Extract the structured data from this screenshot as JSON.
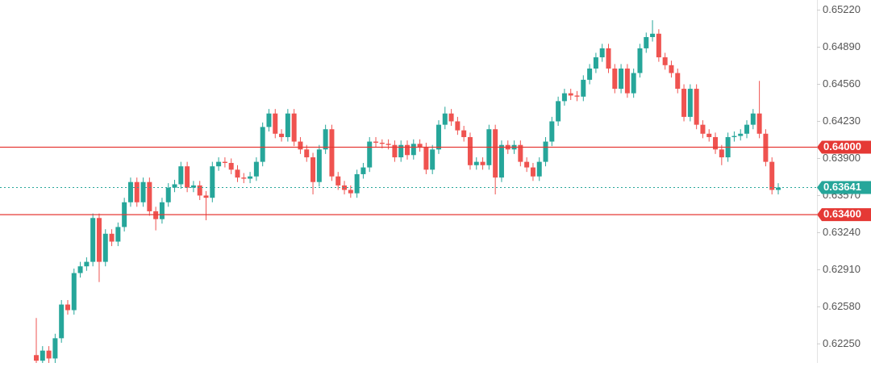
{
  "chart_data": {
    "type": "candlestick",
    "ylim": [
      0.6208,
      0.6531
    ],
    "yticks": [
      {
        "value": 0.6522,
        "label": "0.65220"
      },
      {
        "value": 0.6489,
        "label": "0.64890"
      },
      {
        "value": 0.6456,
        "label": "0.64560"
      },
      {
        "value": 0.6423,
        "label": "0.64230"
      },
      {
        "value": 0.639,
        "label": "0.63900"
      },
      {
        "value": 0.6357,
        "label": "0.63570"
      },
      {
        "value": 0.6324,
        "label": "0.63240"
      },
      {
        "value": 0.6291,
        "label": "0.62910"
      },
      {
        "value": 0.6258,
        "label": "0.62580"
      },
      {
        "value": 0.6225,
        "label": "0.62250"
      }
    ],
    "grid": false,
    "up_color": "#26a69a",
    "down_color": "#ef5350",
    "price_lines": [
      {
        "value": 0.64,
        "label": "0.64000",
        "color": "#e53935",
        "style": "solid"
      },
      {
        "value": 0.634,
        "label": "0.63400",
        "color": "#e53935",
        "style": "solid"
      },
      {
        "value": 0.63641,
        "label": "0.63641",
        "color": "#26a69a",
        "style": "dotted"
      }
    ],
    "open": [
      0.6215,
      0.621,
      0.6219,
      0.6212,
      0.623,
      0.626,
      0.6255,
      0.6288,
      0.6294,
      0.6298,
      0.6337,
      0.6298,
      0.6323,
      0.6316,
      0.6329,
      0.6351,
      0.6369,
      0.6351,
      0.6369,
      0.6343,
      0.6336,
      0.6351,
      0.6364,
      0.6367,
      0.6383,
      0.6364,
      0.6366,
      0.6357,
      0.6355,
      0.6383,
      0.6387,
      0.6386,
      0.638,
      0.6373,
      0.6372,
      0.6374,
      0.6387,
      0.6418,
      0.643,
      0.6412,
      0.6409,
      0.643,
      0.6405,
      0.6398,
      0.6391,
      0.6369,
      0.6398,
      0.6416,
      0.6374,
      0.6366,
      0.6362,
      0.6359,
      0.6376,
      0.6382,
      0.6405,
      0.6404,
      0.6403,
      0.6402,
      0.6391,
      0.6402,
      0.6393,
      0.6403,
      0.64,
      0.638,
      0.6398,
      0.642,
      0.643,
      0.6423,
      0.6415,
      0.6409,
      0.6384,
      0.6387,
      0.6384,
      0.6416,
      0.6373,
      0.6402,
      0.6398,
      0.6402,
      0.6387,
      0.6382,
      0.6374,
      0.6387,
      0.6405,
      0.6423,
      0.6441,
      0.6448,
      0.6446,
      0.6445,
      0.646,
      0.647,
      0.648,
      0.6488,
      0.647,
      0.6452,
      0.647,
      0.6448,
      0.6466,
      0.6488,
      0.6498,
      0.6501,
      0.648,
      0.6473,
      0.6466,
      0.6452,
      0.6427,
      0.6452,
      0.642,
      0.6412,
      0.6409,
      0.6398,
      0.6391,
      0.6409,
      0.641,
      0.6412,
      0.642,
      0.643,
      0.6412,
      0.6387,
      0.6362
    ],
    "high": [
      0.6248,
      0.6223,
      0.6223,
      0.6234,
      0.6264,
      0.6264,
      0.6292,
      0.6298,
      0.6302,
      0.6341,
      0.6341,
      0.6327,
      0.6327,
      0.6333,
      0.6355,
      0.6373,
      0.6373,
      0.6373,
      0.6373,
      0.6347,
      0.6355,
      0.6368,
      0.6371,
      0.6387,
      0.6387,
      0.637,
      0.637,
      0.6361,
      0.6387,
      0.6391,
      0.6391,
      0.639,
      0.6384,
      0.6377,
      0.6378,
      0.6391,
      0.6422,
      0.6434,
      0.6434,
      0.6416,
      0.6434,
      0.6434,
      0.6409,
      0.6402,
      0.6395,
      0.6402,
      0.642,
      0.642,
      0.6378,
      0.637,
      0.6366,
      0.638,
      0.6386,
      0.6409,
      0.6409,
      0.6407,
      0.6407,
      0.6406,
      0.6406,
      0.6406,
      0.6407,
      0.6407,
      0.6404,
      0.6402,
      0.6424,
      0.6436,
      0.6434,
      0.6427,
      0.6419,
      0.6413,
      0.6391,
      0.6391,
      0.642,
      0.642,
      0.6406,
      0.6406,
      0.6406,
      0.6406,
      0.6391,
      0.6386,
      0.6391,
      0.6409,
      0.6427,
      0.6445,
      0.6452,
      0.6452,
      0.645,
      0.6464,
      0.6474,
      0.6484,
      0.6492,
      0.6492,
      0.6474,
      0.6474,
      0.6474,
      0.647,
      0.6492,
      0.6502,
      0.6513,
      0.6505,
      0.6484,
      0.6477,
      0.647,
      0.6456,
      0.6456,
      0.6456,
      0.6424,
      0.6416,
      0.6413,
      0.6402,
      0.6413,
      0.6414,
      0.6416,
      0.6424,
      0.6434,
      0.6459,
      0.6416,
      0.6391,
      0.6368
    ],
    "low": [
      0.6206,
      0.6206,
      0.6208,
      0.6208,
      0.6226,
      0.6251,
      0.6251,
      0.6284,
      0.629,
      0.6294,
      0.628,
      0.6294,
      0.6312,
      0.6312,
      0.6325,
      0.6347,
      0.6347,
      0.6347,
      0.6339,
      0.6326,
      0.6332,
      0.6347,
      0.636,
      0.6363,
      0.636,
      0.636,
      0.6353,
      0.6335,
      0.6351,
      0.6379,
      0.6382,
      0.6376,
      0.6369,
      0.6368,
      0.6368,
      0.637,
      0.6383,
      0.6414,
      0.6408,
      0.6405,
      0.6405,
      0.6401,
      0.6394,
      0.6387,
      0.6358,
      0.6365,
      0.6394,
      0.637,
      0.6362,
      0.6358,
      0.6355,
      0.6355,
      0.6372,
      0.6378,
      0.64,
      0.6399,
      0.6398,
      0.6387,
      0.6387,
      0.6389,
      0.6389,
      0.6396,
      0.6376,
      0.6376,
      0.6394,
      0.6416,
      0.6419,
      0.6411,
      0.6405,
      0.638,
      0.638,
      0.638,
      0.638,
      0.6358,
      0.6369,
      0.6394,
      0.6394,
      0.6383,
      0.6378,
      0.637,
      0.637,
      0.6383,
      0.6401,
      0.6419,
      0.6437,
      0.6442,
      0.6441,
      0.6441,
      0.6456,
      0.6466,
      0.6476,
      0.6466,
      0.6448,
      0.6448,
      0.6444,
      0.6444,
      0.6462,
      0.6484,
      0.6494,
      0.6476,
      0.6469,
      0.6462,
      0.6448,
      0.6423,
      0.6423,
      0.6416,
      0.6408,
      0.6405,
      0.6394,
      0.6384,
      0.6387,
      0.6405,
      0.6406,
      0.6408,
      0.6416,
      0.6408,
      0.6383,
      0.6358,
      0.6358
    ],
    "close": [
      0.621,
      0.6219,
      0.6212,
      0.623,
      0.626,
      0.6255,
      0.6288,
      0.6294,
      0.6298,
      0.6337,
      0.6298,
      0.6323,
      0.6316,
      0.6329,
      0.6351,
      0.6369,
      0.6351,
      0.6369,
      0.6343,
      0.6336,
      0.6351,
      0.6364,
      0.6367,
      0.6383,
      0.6364,
      0.6366,
      0.6357,
      0.6355,
      0.6383,
      0.6387,
      0.6386,
      0.638,
      0.6373,
      0.6372,
      0.6374,
      0.6387,
      0.6418,
      0.643,
      0.6412,
      0.6409,
      0.643,
      0.6405,
      0.6398,
      0.6391,
      0.6369,
      0.6398,
      0.6416,
      0.6374,
      0.6366,
      0.6362,
      0.6359,
      0.6376,
      0.6382,
      0.6405,
      0.6404,
      0.6403,
      0.6402,
      0.6391,
      0.6402,
      0.6393,
      0.6403,
      0.64,
      0.638,
      0.6398,
      0.642,
      0.643,
      0.6423,
      0.6415,
      0.6409,
      0.6384,
      0.6387,
      0.6384,
      0.6416,
      0.6373,
      0.6402,
      0.6398,
      0.6402,
      0.6387,
      0.6382,
      0.6374,
      0.6387,
      0.6405,
      0.6423,
      0.6441,
      0.6448,
      0.6446,
      0.6445,
      0.646,
      0.647,
      0.648,
      0.6488,
      0.647,
      0.6452,
      0.647,
      0.6448,
      0.6466,
      0.6488,
      0.6498,
      0.6501,
      0.648,
      0.6473,
      0.6466,
      0.6452,
      0.6427,
      0.6452,
      0.642,
      0.6412,
      0.6409,
      0.6398,
      0.6391,
      0.6409,
      0.641,
      0.6412,
      0.642,
      0.643,
      0.6412,
      0.6387,
      0.6362,
      0.63641
    ]
  }
}
